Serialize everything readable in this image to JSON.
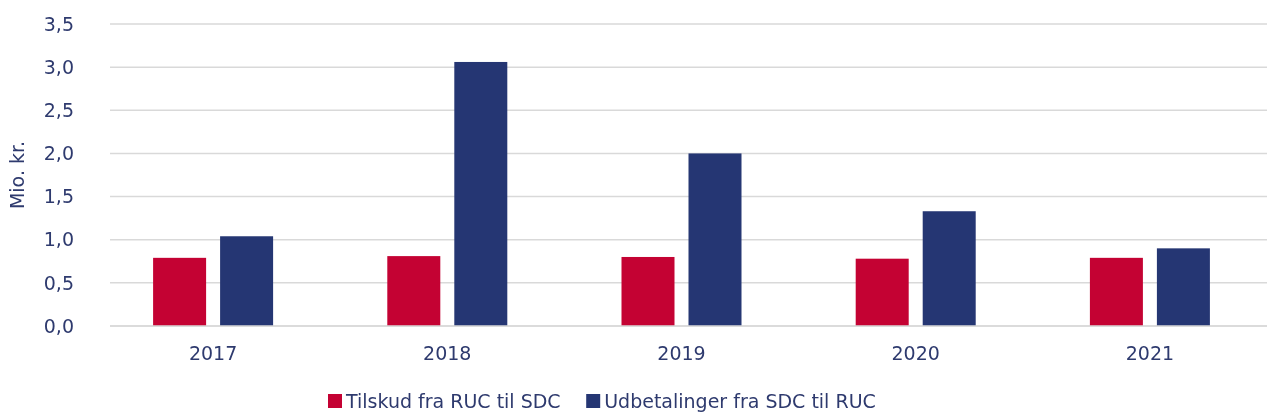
{
  "chart_data": {
    "type": "bar",
    "ylabel": "Mio. kr.",
    "categories": [
      "2017",
      "2018",
      "2019",
      "2020",
      "2021"
    ],
    "series": [
      {
        "name": "Tilskud fra RUC til SDC",
        "color": "#c40233",
        "values": [
          0.79,
          0.81,
          0.8,
          0.78,
          0.79
        ]
      },
      {
        "name": "Udbetalinger fra SDC til RUC",
        "color": "#253673",
        "values": [
          1.04,
          3.06,
          2.0,
          1.33,
          0.9
        ]
      }
    ],
    "ylim": [
      0,
      3.5
    ],
    "yticks": [
      {
        "value": 0,
        "label": "0,0"
      },
      {
        "value": 0.5,
        "label": "0,5"
      },
      {
        "value": 1,
        "label": "1,0"
      },
      {
        "value": 1.5,
        "label": "1,5"
      },
      {
        "value": 2,
        "label": "2,0"
      },
      {
        "value": 2.5,
        "label": "2,5"
      },
      {
        "value": 3,
        "label": "3,0"
      },
      {
        "value": 3.5,
        "label": "3,5"
      }
    ],
    "grid": "y",
    "legend": "bottom"
  }
}
